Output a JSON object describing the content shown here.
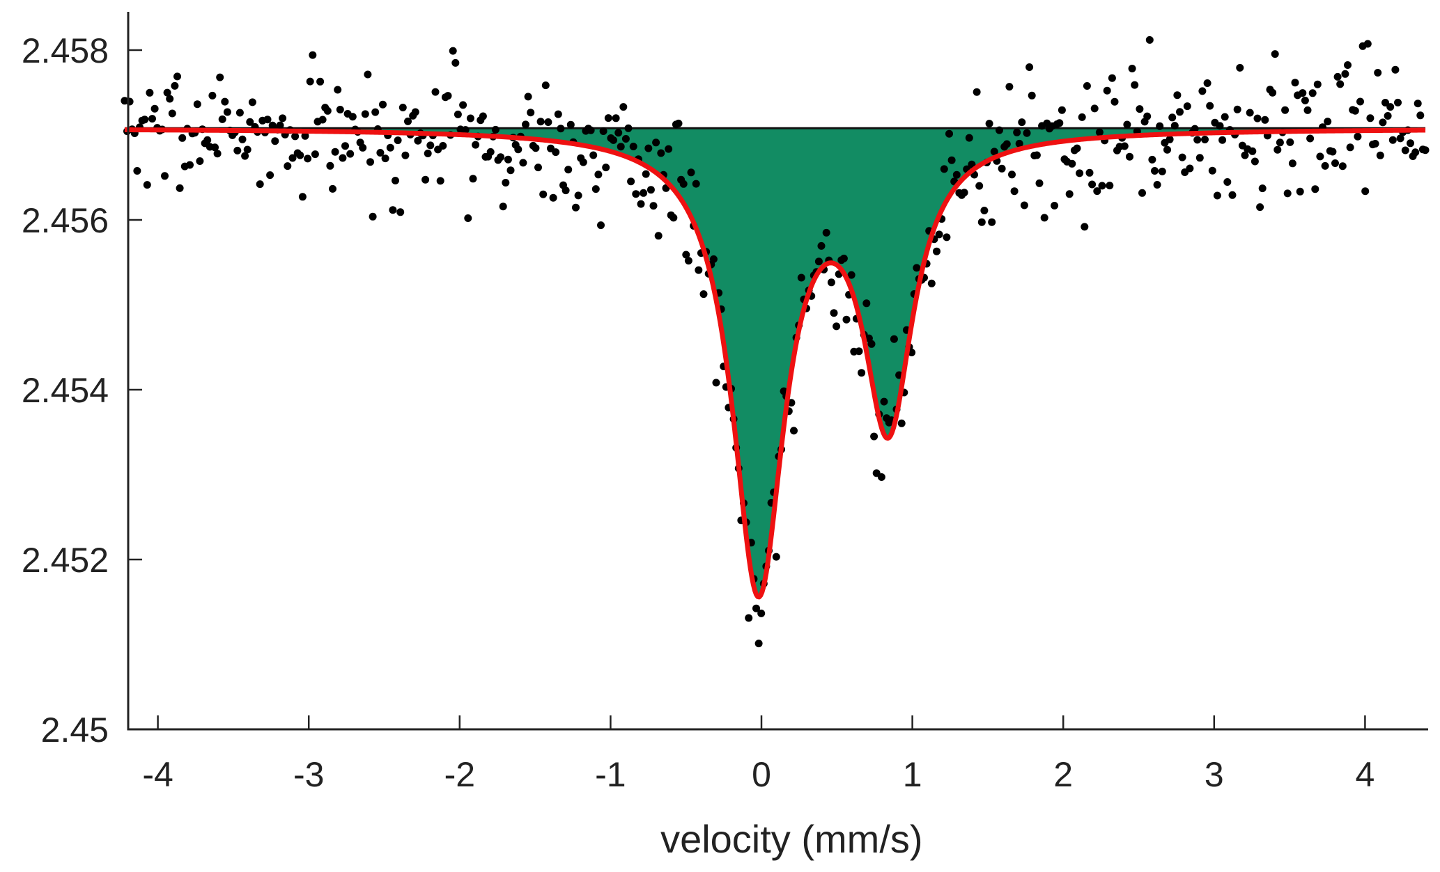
{
  "chart_data": {
    "type": "scatter",
    "title": "",
    "xlabel": "velocity (mm/s)",
    "ylabel": "",
    "xlim": [
      -4.22,
      4.4
    ],
    "ylim": [
      2.45,
      2.4585
    ],
    "grid": false,
    "legend": "none",
    "x_ticks": [
      {
        "value": -4,
        "label": "-4"
      },
      {
        "value": -3,
        "label": "-3"
      },
      {
        "value": -2,
        "label": "-2"
      },
      {
        "value": -1,
        "label": "-1"
      },
      {
        "value": 0,
        "label": "0"
      },
      {
        "value": 1,
        "label": "1"
      },
      {
        "value": 2,
        "label": "2"
      },
      {
        "value": 3,
        "label": "3"
      },
      {
        "value": 4,
        "label": "4"
      }
    ],
    "y_ticks": [
      {
        "value": 2.45,
        "label": "2.45"
      },
      {
        "value": 2.452,
        "label": "2.452"
      },
      {
        "value": 2.454,
        "label": "2.454"
      },
      {
        "value": 2.456,
        "label": "2.456"
      },
      {
        "value": 2.458,
        "label": "2.458"
      }
    ],
    "baseline": 2.45708,
    "fit_model": {
      "name": "doublet fit",
      "components": [
        {
          "center": -0.02,
          "depth": 0.00535,
          "fwhm": 0.42
        },
        {
          "center": 0.84,
          "depth": 0.00335,
          "fwhm": 0.4
        }
      ]
    },
    "data_points": {
      "count": 520,
      "x_range": [
        -4.22,
        4.4
      ],
      "noise_sd": 0.00045,
      "seed": 7
    },
    "colors": {
      "fit_line": "#ee1111",
      "fill": "#128c63",
      "points": "#000000",
      "baseline": "#111111",
      "axis": "#222222"
    }
  }
}
